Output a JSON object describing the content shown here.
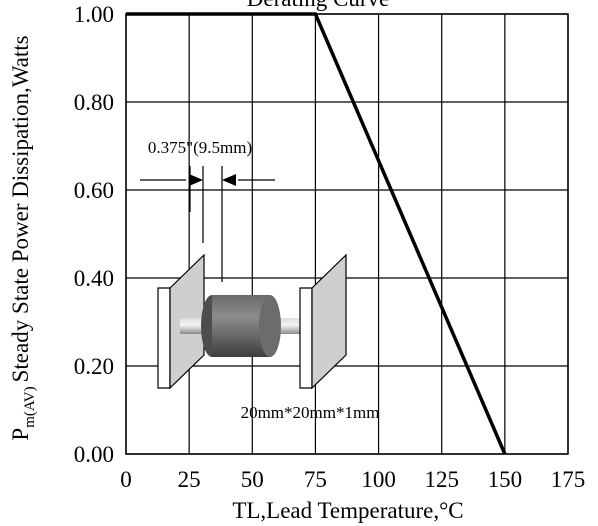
{
  "chart_data": {
    "type": "line",
    "title": "Derating Curve",
    "xlabel": "TL,Lead Temperature,°C",
    "ylabel_sub": "m(AV)",
    "ylabel_main": "Steady State Power Dissipation,Watts",
    "ylabel_prefix": "P",
    "xlim": [
      0,
      175
    ],
    "ylim": [
      0,
      1.0
    ],
    "x_ticks": [
      0,
      25,
      50,
      75,
      100,
      125,
      150,
      175
    ],
    "y_ticks": [
      0.0,
      0.2,
      0.4,
      0.6,
      0.8,
      1.0
    ],
    "x_tick_labels": [
      "0",
      "25",
      "50",
      "75",
      "100",
      "125",
      "150",
      "175"
    ],
    "y_tick_labels": [
      "0.00",
      "0.20",
      "0.40",
      "0.60",
      "0.80",
      "1.00"
    ],
    "grid": true,
    "series": [
      {
        "x": [
          0,
          75,
          150
        ],
        "y": [
          1.0,
          1.0,
          0.0
        ]
      }
    ],
    "annotations": {
      "lead_length": "0.375\"(9.5mm)",
      "heatsink_size": "20mm*20mm*1mm"
    }
  }
}
